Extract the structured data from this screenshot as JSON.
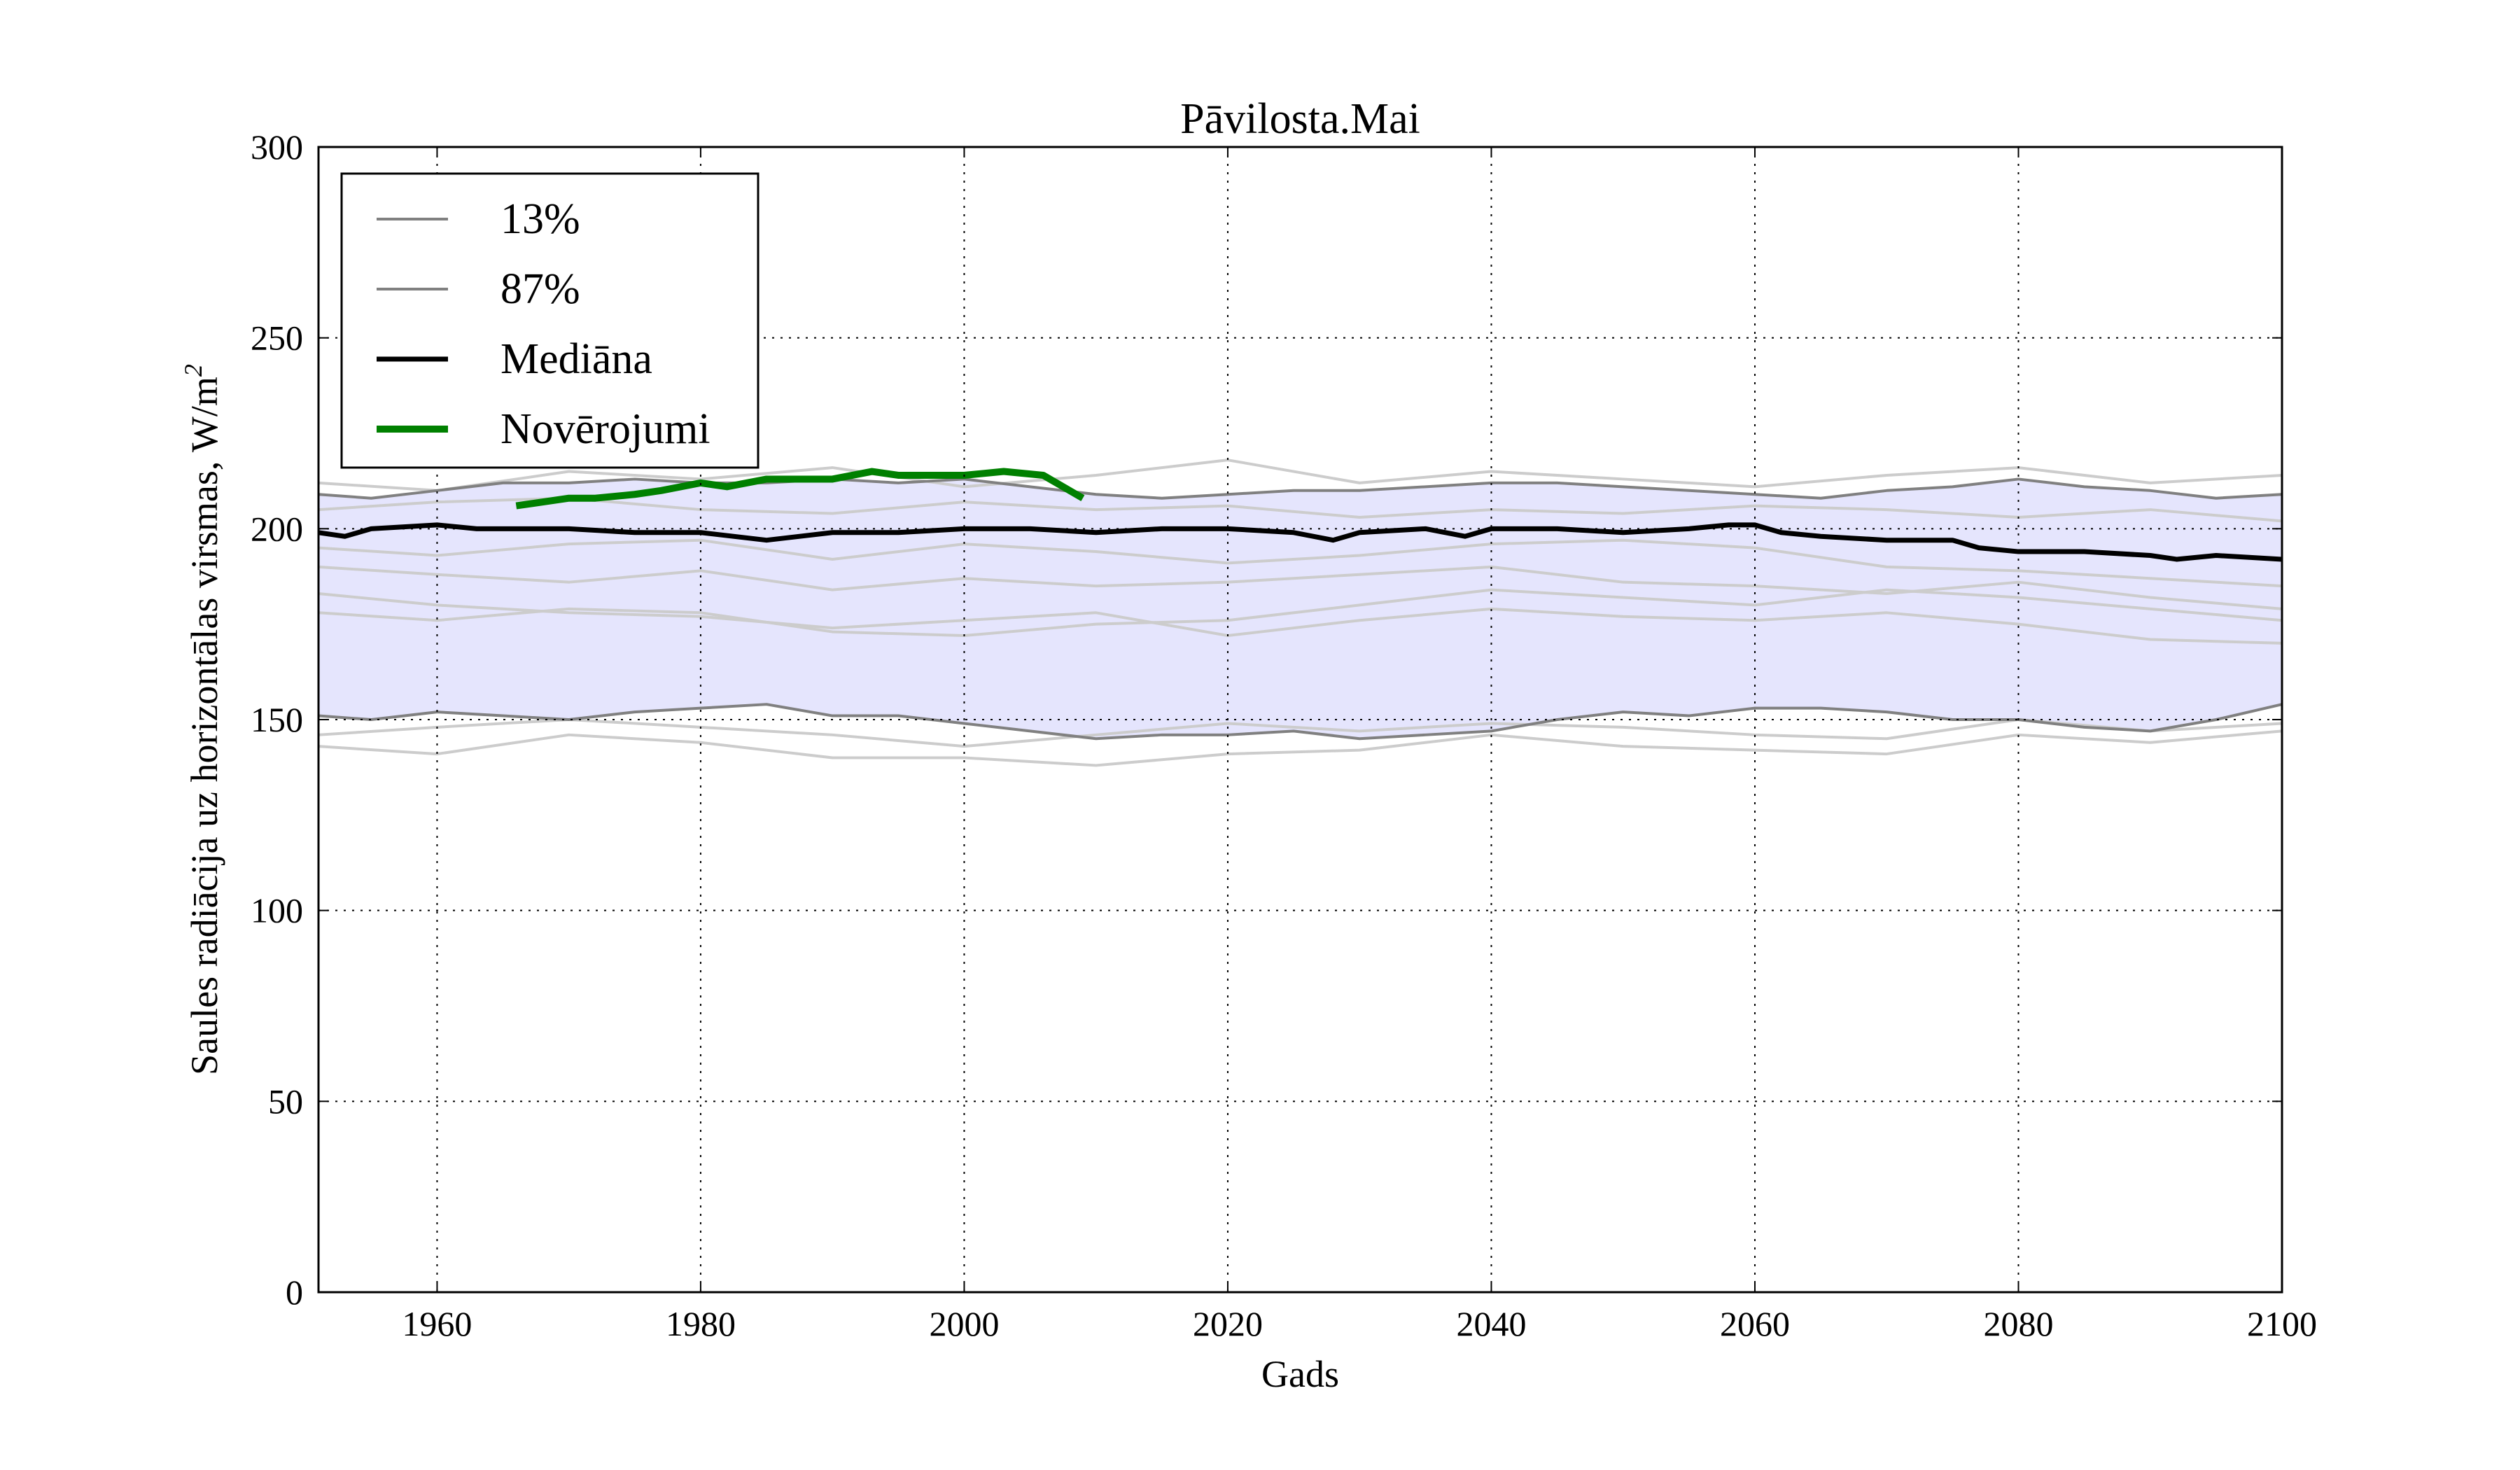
{
  "chart_data": {
    "type": "line",
    "title": "Pāvilosta.Mai",
    "xlabel": "Gads",
    "ylabel": "Saules radiācija uz horizontālas virsmas, W/m",
    "ylabel_exponent": "2",
    "xlim": [
      1951,
      2100
    ],
    "ylim": [
      0,
      300
    ],
    "xticks": [
      "1960",
      "1980",
      "2000",
      "2020",
      "2040",
      "2060",
      "2080",
      "2100"
    ],
    "yticks": [
      "0",
      "50",
      "100",
      "150",
      "200",
      "250",
      "300"
    ],
    "grid": true,
    "legend_position": "top-left",
    "band_color": "#e5e5fd",
    "colors": {
      "p13": "#808080",
      "p87": "#808080",
      "median": "#000000",
      "obs": "#008000",
      "ensemble": "#cccccc"
    },
    "legend": [
      {
        "key": "p13",
        "label": "13%"
      },
      {
        "key": "p87",
        "label": "87%"
      },
      {
        "key": "median",
        "label": "Mediāna"
      },
      {
        "key": "obs",
        "label": "Novērojumi"
      }
    ],
    "series": [
      {
        "key": "p13",
        "name": "13%",
        "x": [
          1951,
          1955,
          1960,
          1965,
          1970,
          1975,
          1980,
          1985,
          1990,
          1995,
          2000,
          2005,
          2010,
          2015,
          2020,
          2025,
          2030,
          2035,
          2040,
          2045,
          2050,
          2055,
          2060,
          2065,
          2070,
          2075,
          2080,
          2085,
          2090,
          2095,
          2100
        ],
        "y": [
          151,
          150,
          152,
          151,
          150,
          152,
          153,
          154,
          151,
          151,
          149,
          147,
          145,
          146,
          146,
          147,
          145,
          146,
          147,
          150,
          152,
          151,
          153,
          153,
          152,
          150,
          150,
          148,
          147,
          150,
          154
        ]
      },
      {
        "key": "p87",
        "name": "87%",
        "x": [
          1951,
          1955,
          1960,
          1965,
          1970,
          1975,
          1980,
          1985,
          1990,
          1995,
          2000,
          2005,
          2010,
          2015,
          2020,
          2025,
          2030,
          2035,
          2040,
          2045,
          2050,
          2055,
          2060,
          2065,
          2070,
          2075,
          2080,
          2085,
          2090,
          2095,
          2100
        ],
        "y": [
          209,
          208,
          210,
          212,
          212,
          213,
          212,
          212,
          213,
          212,
          213,
          211,
          209,
          208,
          209,
          210,
          210,
          211,
          212,
          212,
          211,
          210,
          209,
          208,
          210,
          211,
          213,
          211,
          210,
          208,
          209
        ]
      },
      {
        "key": "median",
        "name": "Mediāna",
        "x": [
          1951,
          1953,
          1955,
          1960,
          1963,
          1965,
          1970,
          1975,
          1980,
          1985,
          1990,
          1995,
          2000,
          2005,
          2010,
          2015,
          2020,
          2025,
          2028,
          2030,
          2035,
          2038,
          2040,
          2045,
          2050,
          2055,
          2058,
          2060,
          2062,
          2065,
          2070,
          2075,
          2077,
          2080,
          2085,
          2090,
          2092,
          2095,
          2100
        ],
        "y": [
          199,
          198,
          200,
          201,
          200,
          200,
          200,
          199,
          199,
          197,
          199,
          199,
          200,
          200,
          199,
          200,
          200,
          199,
          197,
          199,
          200,
          198,
          200,
          200,
          199,
          200,
          201,
          201,
          199,
          198,
          197,
          197,
          195,
          194,
          194,
          193,
          192,
          193,
          192
        ]
      },
      {
        "key": "obs",
        "name": "Novērojumi",
        "x": [
          1966,
          1968,
          1970,
          1972,
          1975,
          1977,
          1980,
          1982,
          1985,
          1988,
          1990,
          1993,
          1995,
          1998,
          2000,
          2003,
          2006,
          2008,
          2009
        ],
        "y": [
          206,
          207,
          208,
          208,
          209,
          210,
          212,
          211,
          213,
          213,
          213,
          215,
          214,
          214,
          214,
          215,
          214,
          210,
          208
        ]
      },
      {
        "key": "ensemble",
        "x": [
          1951,
          1960,
          1970,
          1980,
          1990,
          2000,
          2010,
          2020,
          2030,
          2040,
          2050,
          2060,
          2070,
          2080,
          2090,
          2100
        ],
        "y": [
          143,
          141,
          146,
          144,
          140,
          140,
          138,
          141,
          142,
          146,
          143,
          142,
          141,
          146,
          144,
          147
        ]
      },
      {
        "key": "ensemble",
        "x": [
          1951,
          1960,
          1970,
          1980,
          1990,
          2000,
          2010,
          2020,
          2030,
          2040,
          2050,
          2060,
          2070,
          2080,
          2090,
          2100
        ],
        "y": [
          146,
          148,
          150,
          148,
          146,
          143,
          146,
          149,
          147,
          149,
          148,
          146,
          145,
          150,
          147,
          149
        ]
      },
      {
        "key": "ensemble",
        "x": [
          1951,
          1960,
          1970,
          1980,
          1990,
          2000,
          2010,
          2020,
          2030,
          2040,
          2050,
          2060,
          2070,
          2080,
          2090,
          2100
        ],
        "y": [
          183,
          180,
          178,
          177,
          174,
          176,
          178,
          172,
          176,
          179,
          177,
          176,
          178,
          175,
          171,
          170
        ]
      },
      {
        "key": "ensemble",
        "x": [
          1951,
          1960,
          1970,
          1980,
          1990,
          2000,
          2010,
          2020,
          2030,
          2040,
          2050,
          2060,
          2070,
          2080,
          2090,
          2100
        ],
        "y": [
          178,
          176,
          179,
          178,
          173,
          172,
          175,
          176,
          180,
          184,
          182,
          180,
          184,
          182,
          179,
          176
        ]
      },
      {
        "key": "ensemble",
        "x": [
          1951,
          1960,
          1970,
          1980,
          1990,
          2000,
          2010,
          2020,
          2030,
          2040,
          2050,
          2060,
          2070,
          2080,
          2090,
          2100
        ],
        "y": [
          190,
          188,
          186,
          189,
          184,
          187,
          185,
          186,
          188,
          190,
          186,
          185,
          183,
          186,
          182,
          179
        ]
      },
      {
        "key": "ensemble",
        "x": [
          1951,
          1960,
          1970,
          1980,
          1990,
          2000,
          2010,
          2020,
          2030,
          2040,
          2050,
          2060,
          2070,
          2080,
          2090,
          2100
        ],
        "y": [
          195,
          193,
          196,
          197,
          192,
          196,
          194,
          191,
          193,
          196,
          197,
          195,
          190,
          189,
          187,
          185
        ]
      },
      {
        "key": "ensemble",
        "x": [
          1951,
          1960,
          1970,
          1980,
          1990,
          2000,
          2010,
          2020,
          2030,
          2040,
          2050,
          2060,
          2070,
          2080,
          2090,
          2100
        ],
        "y": [
          205,
          207,
          208,
          205,
          204,
          207,
          205,
          206,
          203,
          205,
          204,
          206,
          205,
          203,
          205,
          202
        ]
      },
      {
        "key": "ensemble",
        "x": [
          1951,
          1960,
          1970,
          1980,
          1990,
          2000,
          2010,
          2020,
          2030,
          2040,
          2050,
          2060,
          2070,
          2080,
          2090,
          2100
        ],
        "y": [
          212,
          210,
          215,
          213,
          216,
          211,
          214,
          218,
          212,
          215,
          213,
          211,
          214,
          216,
          212,
          214
        ]
      }
    ]
  }
}
